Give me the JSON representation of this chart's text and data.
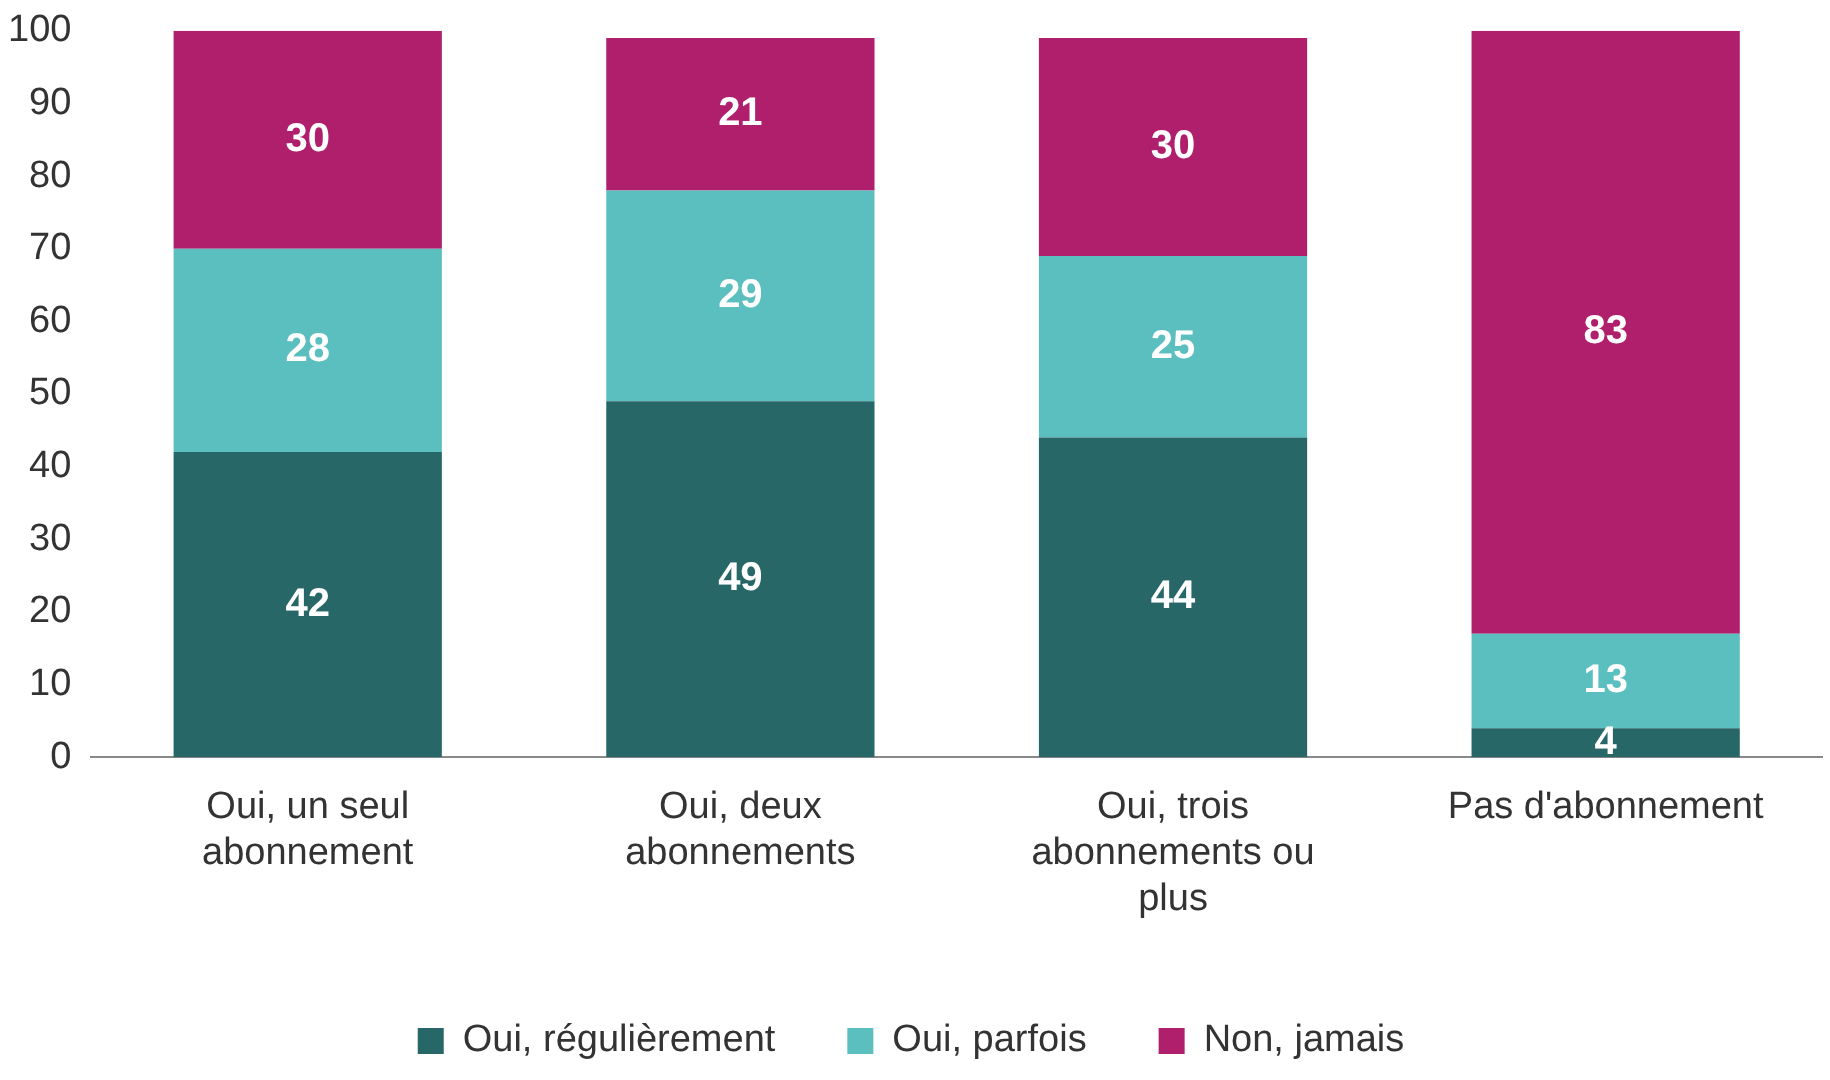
{
  "chart_data": {
    "type": "bar",
    "stacked": true,
    "categories": [
      "Oui, un seul abonnement",
      "Oui, deux abonnements",
      "Oui, trois abonnements ou plus",
      "Pas d'abonnement"
    ],
    "series": [
      {
        "name": "Oui, régulièrement",
        "color": "#276767",
        "values": [
          42,
          49,
          44,
          4
        ]
      },
      {
        "name": "Oui, parfois",
        "color": "#5bbfbf",
        "values": [
          28,
          29,
          25,
          13
        ]
      },
      {
        "name": "Non, jamais",
        "color": "#b01f6c",
        "values": [
          30,
          21,
          30,
          83
        ]
      }
    ],
    "ylim": [
      0,
      100
    ],
    "yticks": [
      0,
      10,
      20,
      30,
      40,
      50,
      60,
      70,
      80,
      90,
      100
    ],
    "grid": false,
    "legend": "bottom",
    "data_labels": true
  }
}
